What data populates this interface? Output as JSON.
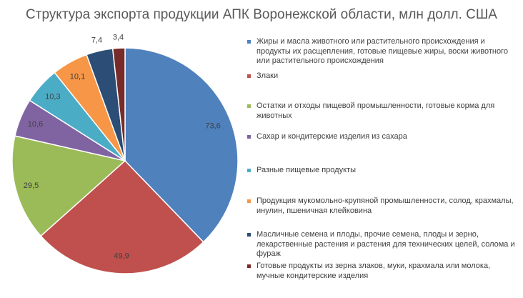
{
  "chart_data": {
    "type": "pie",
    "title": "Структура экспорта продукции АПК Воронежской области, млн  долл. США",
    "legend_position": "right",
    "slices": [
      {
        "label": "Жиры и масла животного или растительного происхождения и продукты их расщепления, готовые пищевые жиры, воски животного или растительного происхождения",
        "value": 73.6,
        "value_label": "73,6",
        "color": "#4f81bd"
      },
      {
        "label": "Злаки",
        "value": 49.9,
        "value_label": "49,9",
        "color": "#c0504d"
      },
      {
        "label": "Остатки и отходы пищевой промышленности, готовые корма для животных",
        "value": 29.5,
        "value_label": "29,5",
        "color": "#9bbb59"
      },
      {
        "label": "Сахар и кондитерские изделия из сахара",
        "value": 10.6,
        "value_label": "10,6",
        "color": "#8064a2"
      },
      {
        "label": "Разные пищевые продукты",
        "value": 10.3,
        "value_label": "10,3",
        "color": "#4bacc6"
      },
      {
        "label": "Продукция мукомольно-крупяной промышленности, солод, крахмалы, инулин, пшеничная клейковина",
        "value": 10.1,
        "value_label": "10,1",
        "color": "#f79646"
      },
      {
        "label": "Масличные семена и плоды, прочие семена, плоды и зерно, лекарственные растения и растения для технических целей, солома и фураж",
        "value": 7.4,
        "value_label": "7,4",
        "color": "#2c4d75"
      },
      {
        "label": "Готовые продукты из зерна злаков, муки, крахмала  или молока, мучные кондитерские изделия",
        "value": 3.4,
        "value_label": "3,4",
        "color": "#772c2a"
      }
    ]
  }
}
